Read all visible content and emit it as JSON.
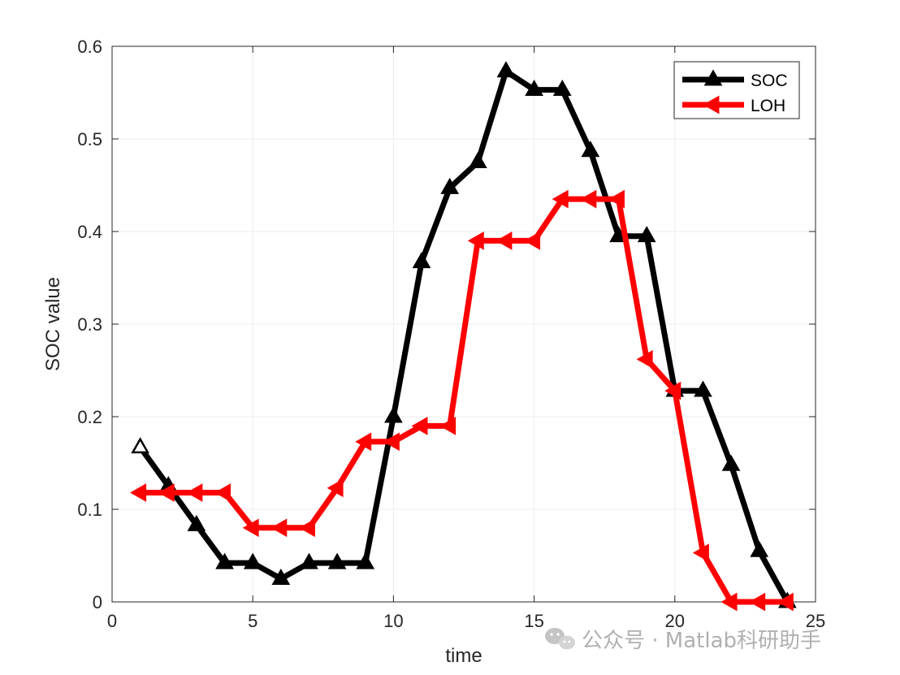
{
  "chart_data": {
    "type": "line",
    "xlabel": "time",
    "ylabel": "SOC value",
    "xlim": [
      0,
      25
    ],
    "ylim": [
      0,
      0.6
    ],
    "xticks": [
      "0",
      "5",
      "10",
      "15",
      "20",
      "25"
    ],
    "yticks": [
      "0",
      "0.1",
      "0.2",
      "0.3",
      "0.4",
      "0.5",
      "0.6"
    ],
    "grid": true,
    "legend_position": "top-right",
    "x": [
      1,
      2,
      3,
      4,
      5,
      6,
      7,
      8,
      9,
      10,
      11,
      12,
      13,
      14,
      15,
      16,
      17,
      18,
      19,
      20,
      21,
      22,
      23,
      24
    ],
    "series": [
      {
        "name": "SOC",
        "color": "#000000",
        "marker": "triangle-up",
        "values": [
          0.167,
          0.125,
          0.083,
          0.042,
          0.042,
          0.025,
          0.042,
          0.042,
          0.042,
          0.2,
          0.367,
          0.447,
          0.475,
          0.573,
          0.553,
          0.553,
          0.487,
          0.395,
          0.395,
          0.228,
          0.228,
          0.148,
          0.055,
          0.0
        ]
      },
      {
        "name": "LOH",
        "color": "#ff0000",
        "marker": "triangle-left",
        "values": [
          0.118,
          0.118,
          0.118,
          0.118,
          0.08,
          0.08,
          0.08,
          0.123,
          0.173,
          0.173,
          0.19,
          0.19,
          0.39,
          0.39,
          0.39,
          0.435,
          0.435,
          0.435,
          0.262,
          0.228,
          0.053,
          0.0,
          0.0,
          0.0
        ]
      }
    ]
  },
  "watermark": {
    "icon": "wechat-icon",
    "text": "公众号 · Matlab科研助手"
  }
}
